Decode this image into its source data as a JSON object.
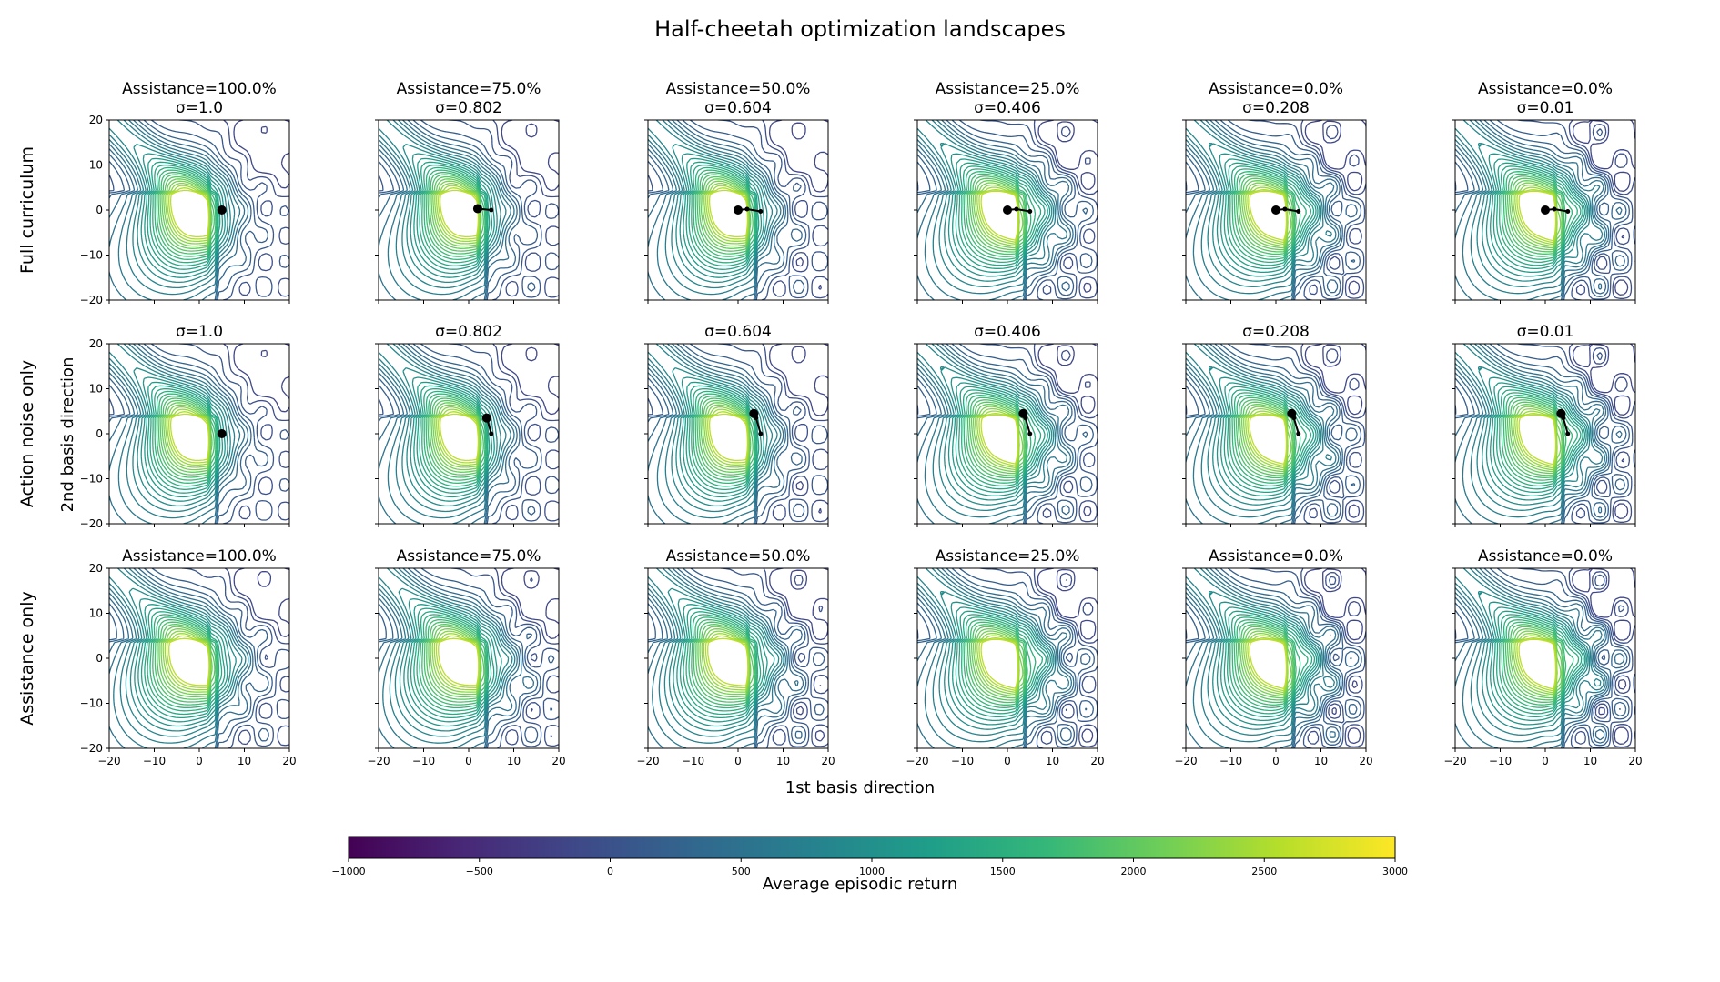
{
  "chart_data": {
    "type": "contour",
    "title": "Half-cheetah optimization landscapes",
    "xlabel": "1st basis direction",
    "ylabel": "2nd basis direction",
    "xlim": [
      -20,
      20
    ],
    "ylim": [
      -20,
      20
    ],
    "xticks": [
      -20,
      -10,
      0,
      10,
      20
    ],
    "yticks": [
      -20,
      -10,
      0,
      10,
      20
    ],
    "xtick_labels": [
      "−20",
      "−10",
      "0",
      "10",
      "20"
    ],
    "ytick_labels": [
      "−20",
      "−10",
      "0",
      "10",
      "20"
    ],
    "row_labels": [
      "Full curriculum",
      "Action noise only",
      "Assistance only"
    ],
    "grid": false,
    "colormap": "viridis",
    "colormap_stops": [
      "#440154",
      "#482878",
      "#3e4a89",
      "#31688e",
      "#26828e",
      "#1f9e89",
      "#35b779",
      "#6ece58",
      "#b5de2b",
      "#fde725"
    ],
    "colorbar": {
      "label": "Average episodic return",
      "range": [
        -1000,
        3000
      ],
      "ticks": [
        -1000,
        -500,
        0,
        500,
        1000,
        1500,
        2000,
        2500,
        3000
      ],
      "tick_labels": [
        "−1000",
        "−500",
        "0",
        "500",
        "1000",
        "1500",
        "2000",
        "2500",
        "3000"
      ],
      "placement": "bottom"
    },
    "trajectory_color": "#000000",
    "rows": [
      {
        "label": "Full curriculum",
        "panels": [
          {
            "title": [
              "Assistance=100.0%",
              "σ=1.0"
            ],
            "assistance": 100.0,
            "sigma": 1.0,
            "trajectory": [
              [
                5,
                0
              ]
            ]
          },
          {
            "title": [
              "Assistance=75.0%",
              "σ=0.802"
            ],
            "assistance": 75.0,
            "sigma": 0.802,
            "trajectory": [
              [
                5,
                0
              ],
              [
                2,
                0.3
              ]
            ]
          },
          {
            "title": [
              "Assistance=50.0%",
              "σ=0.604"
            ],
            "assistance": 50.0,
            "sigma": 0.604,
            "trajectory": [
              [
                5,
                -0.3
              ],
              [
                2,
                0.2
              ],
              [
                0,
                0
              ]
            ]
          },
          {
            "title": [
              "Assistance=25.0%",
              "σ=0.406"
            ],
            "assistance": 25.0,
            "sigma": 0.406,
            "trajectory": [
              [
                5,
                -0.3
              ],
              [
                2,
                0.2
              ],
              [
                0,
                0
              ]
            ]
          },
          {
            "title": [
              "Assistance=0.0%",
              "σ=0.208"
            ],
            "assistance": 0.0,
            "sigma": 0.208,
            "trajectory": [
              [
                5,
                -0.3
              ],
              [
                2,
                0.2
              ],
              [
                0,
                0
              ]
            ]
          },
          {
            "title": [
              "Assistance=0.0%",
              "σ=0.01"
            ],
            "assistance": 0.0,
            "sigma": 0.01,
            "trajectory": [
              [
                5,
                -0.3
              ],
              [
                2,
                0.2
              ],
              [
                0,
                0
              ]
            ]
          }
        ]
      },
      {
        "label": "Action noise only",
        "panels": [
          {
            "title": [
              "σ=1.0"
            ],
            "sigma": 1.0,
            "trajectory": [
              [
                5,
                0
              ]
            ]
          },
          {
            "title": [
              "σ=0.802"
            ],
            "sigma": 0.802,
            "trajectory": [
              [
                5,
                0
              ],
              [
                4,
                3.5
              ]
            ]
          },
          {
            "title": [
              "σ=0.604"
            ],
            "sigma": 0.604,
            "trajectory": [
              [
                5,
                0
              ],
              [
                4,
                3.5
              ],
              [
                3.5,
                4.5
              ]
            ]
          },
          {
            "title": [
              "σ=0.406"
            ],
            "sigma": 0.406,
            "trajectory": [
              [
                5,
                0
              ],
              [
                4,
                3.5
              ],
              [
                3.5,
                4.5
              ]
            ]
          },
          {
            "title": [
              "σ=0.208"
            ],
            "sigma": 0.208,
            "trajectory": [
              [
                5,
                0
              ],
              [
                4,
                3.5
              ],
              [
                3.5,
                4.5
              ]
            ]
          },
          {
            "title": [
              "σ=0.01"
            ],
            "sigma": 0.01,
            "trajectory": [
              [
                5,
                0
              ],
              [
                4,
                3.5
              ],
              [
                3.5,
                4.5
              ]
            ]
          }
        ]
      },
      {
        "label": "Assistance only",
        "panels": [
          {
            "title": [
              "Assistance=100.0%"
            ],
            "assistance": 100.0,
            "trajectory": []
          },
          {
            "title": [
              "Assistance=75.0%"
            ],
            "assistance": 75.0,
            "trajectory": []
          },
          {
            "title": [
              "Assistance=50.0%"
            ],
            "assistance": 50.0,
            "trajectory": []
          },
          {
            "title": [
              "Assistance=25.0%"
            ],
            "assistance": 25.0,
            "trajectory": []
          },
          {
            "title": [
              "Assistance=0.0%"
            ],
            "assistance": 0.0,
            "trajectory": []
          },
          {
            "title": [
              "Assistance=0.0%"
            ],
            "assistance": 0.0,
            "trajectory": []
          }
        ]
      }
    ]
  }
}
